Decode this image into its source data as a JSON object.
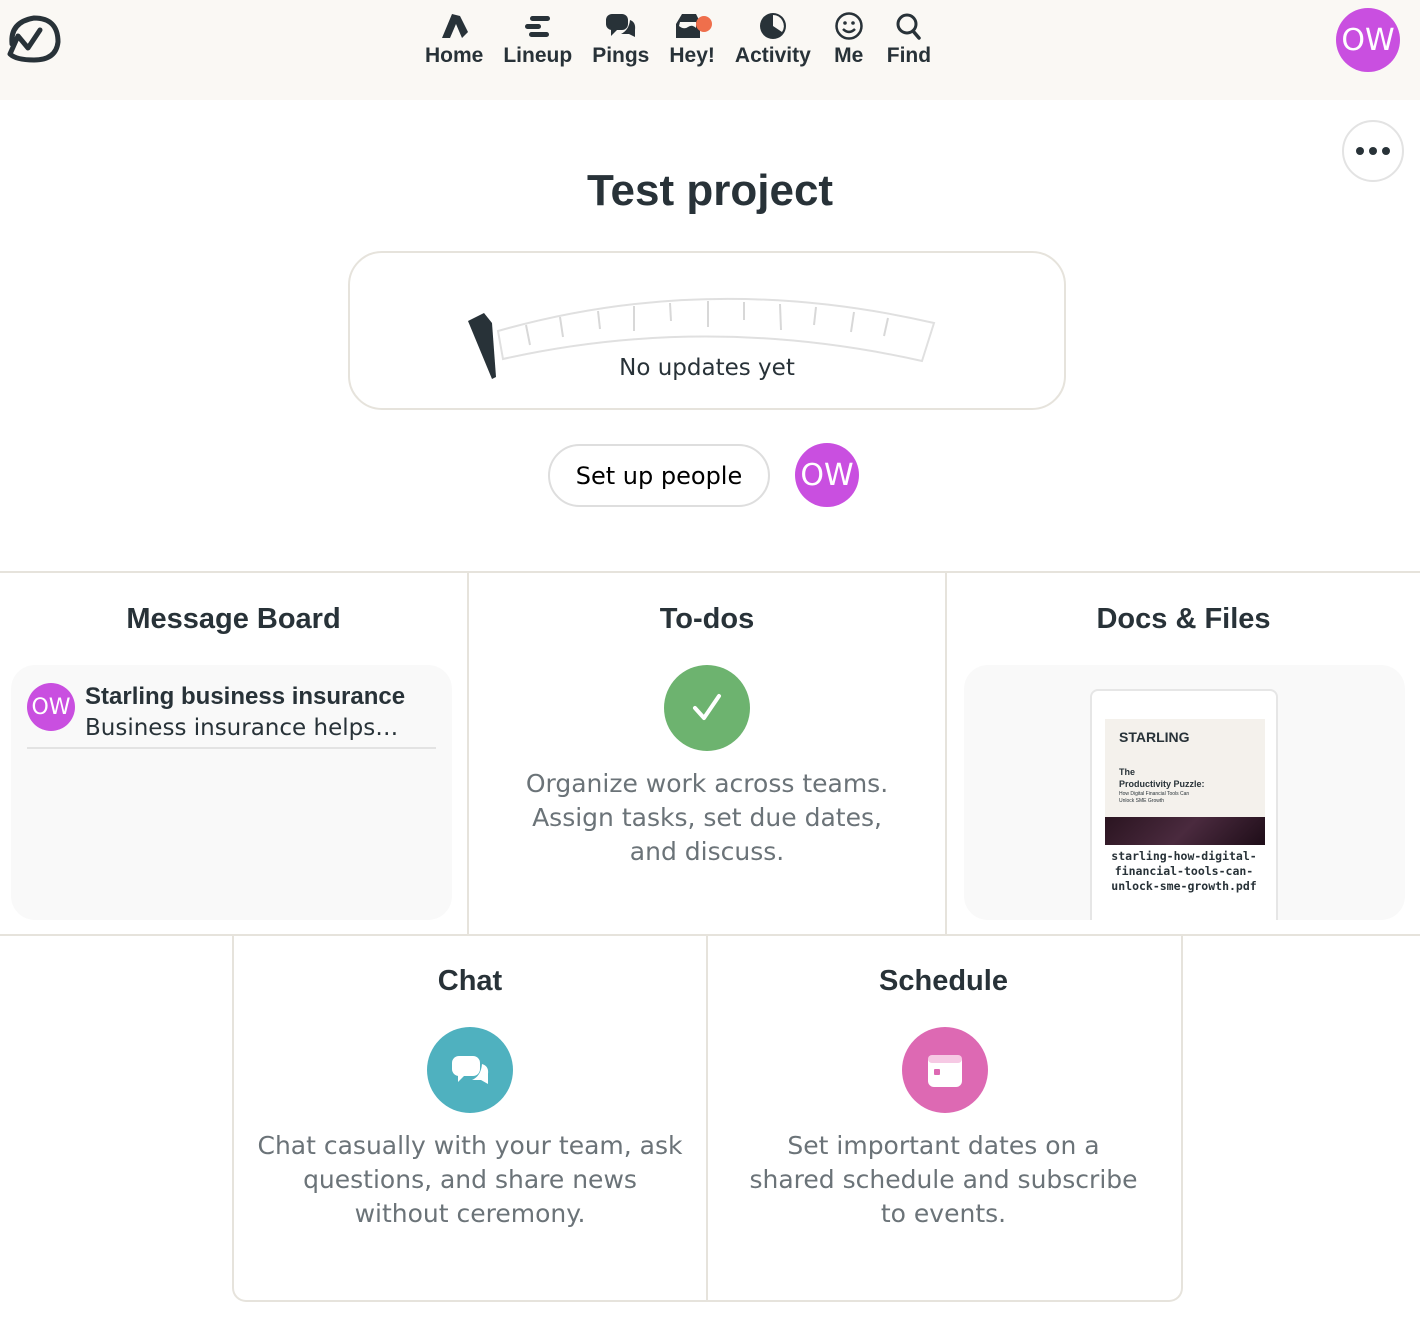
{
  "nav": {
    "items": [
      {
        "label": "Home",
        "icon": "home-icon"
      },
      {
        "label": "Lineup",
        "icon": "lineup-icon"
      },
      {
        "label": "Pings",
        "icon": "pings-icon"
      },
      {
        "label": "Hey!",
        "icon": "hey-icon"
      },
      {
        "label": "Activity",
        "icon": "activity-icon"
      },
      {
        "label": "Me",
        "icon": "smiley-icon"
      },
      {
        "label": "Find",
        "icon": "search-icon"
      }
    ],
    "notification_color": "#ef6f4c",
    "user_initials": "OW"
  },
  "project": {
    "title": "Test project",
    "gauge_text": "No updates yet",
    "setup_people_label": "Set up people",
    "member_initials": "OW"
  },
  "colors": {
    "avatar": "#c94fe0",
    "todos": "#6db36f",
    "chat": "#4fb1bf",
    "schedule": "#dd69b3"
  },
  "cards": {
    "message_board": {
      "title": "Message Board",
      "item": {
        "author_initials": "OW",
        "title": "Starling business insurance",
        "excerpt": "Business insurance helps…"
      }
    },
    "todos": {
      "title": "To-dos",
      "description": [
        "Organize work across teams.",
        "Assign tasks, set due dates,",
        "and discuss."
      ]
    },
    "docs": {
      "title": "Docs & Files",
      "file": {
        "brand": "STARLING",
        "heading1": "The",
        "heading2": "Productivity Puzzle:",
        "subheading1": "How Digital Financial Tools Can",
        "subheading2": "Unlock SME Growth",
        "name": [
          "starling-how-digital-",
          "financial-tools-can-",
          "unlock-sme-growth.pdf"
        ]
      }
    },
    "chat": {
      "title": "Chat",
      "description": [
        "Chat casually with your team, ask",
        "questions, and share news",
        "without ceremony."
      ]
    },
    "schedule": {
      "title": "Schedule",
      "description": [
        "Set important dates on a",
        "shared schedule and subscribe",
        "to events."
      ]
    }
  }
}
